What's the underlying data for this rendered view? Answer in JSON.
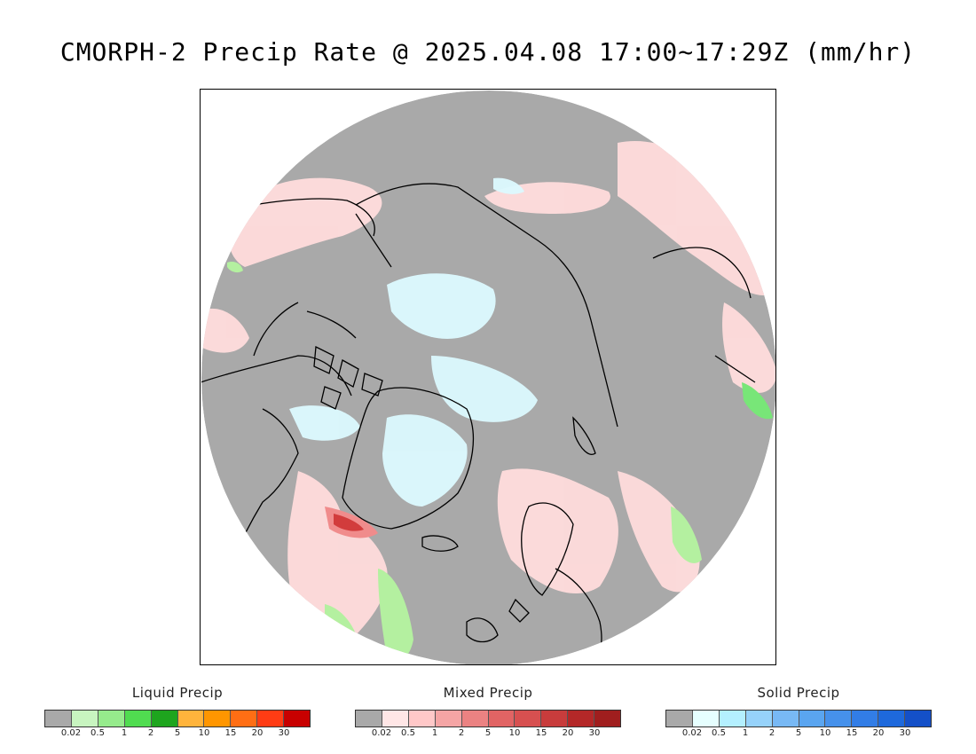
{
  "title": "CMORPH-2 Precip Rate @ 2025.04.08 17:00~17:29Z (mm/hr)",
  "map": {
    "projection": "polar stereographic (north pole)",
    "colors": {
      "background_no_precip": "#a9a9a9",
      "coastline": "#000000",
      "mixed_light": "#ffdcdc",
      "mixed_medium": "#f08c8c",
      "mixed_heavy": "#d23c3c",
      "solid_light": "#dcfaff",
      "liquid_light": "#b4f0a0",
      "liquid_medium": "#78e678"
    }
  },
  "legends": [
    {
      "title": "Liquid Precip",
      "colors": [
        "#a9a9a9",
        "#c8f5c0",
        "#96eb8c",
        "#50dc50",
        "#1ea51e",
        "#ffb43c",
        "#ff9600",
        "#ff6e14",
        "#ff3c14",
        "#c80000"
      ],
      "ticks": [
        "0.02",
        "0.5",
        "1",
        "2",
        "5",
        "10",
        "15",
        "20",
        "30"
      ]
    },
    {
      "title": "Mixed Precip",
      "colors": [
        "#a9a9a9",
        "#ffe6e6",
        "#ffc8c8",
        "#f5a5a5",
        "#eb8282",
        "#e16464",
        "#d75050",
        "#c83c3c",
        "#b42828",
        "#a01e1e"
      ],
      "ticks": [
        "0.02",
        "0.5",
        "1",
        "2",
        "5",
        "10",
        "15",
        "20",
        "30"
      ]
    },
    {
      "title": "Solid Precip",
      "colors": [
        "#a9a9a9",
        "#e6ffff",
        "#b4f0ff",
        "#96d2fa",
        "#78b9f5",
        "#5aa5f0",
        "#4691eb",
        "#327de6",
        "#1e69dc",
        "#1450c8"
      ],
      "ticks": [
        "0.02",
        "0.5",
        "1",
        "2",
        "5",
        "10",
        "15",
        "20",
        "30"
      ]
    }
  ]
}
